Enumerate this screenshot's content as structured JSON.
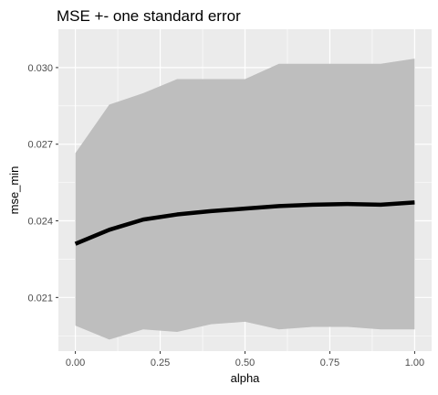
{
  "chart_data": {
    "type": "line",
    "title": "MSE +- one standard error",
    "xlabel": "alpha",
    "ylabel": "mse_min",
    "xlim": [
      -0.05,
      1.05
    ],
    "ylim": [
      0.0189,
      0.0315
    ],
    "x_ticks": [
      0.0,
      0.25,
      0.5,
      0.75,
      1.0
    ],
    "x_tick_labels": [
      "0.00",
      "0.25",
      "0.50",
      "0.75",
      "1.00"
    ],
    "y_ticks": [
      0.021,
      0.024,
      0.027,
      0.03
    ],
    "y_tick_labels": [
      "0.021",
      "0.024",
      "0.027",
      "0.030"
    ],
    "grid": true,
    "x": [
      0.0,
      0.1,
      0.2,
      0.3,
      0.4,
      0.5,
      0.6,
      0.7,
      0.8,
      0.9,
      1.0
    ],
    "series": [
      {
        "values": [
          0.0231,
          0.02365,
          0.02405,
          0.02425,
          0.02438,
          0.02448,
          0.02458,
          0.02463,
          0.02466,
          0.02463,
          0.02472
        ]
      }
    ],
    "band_upper": [
      0.02665,
      0.02855,
      0.029,
      0.02955,
      0.02955,
      0.02955,
      0.03015,
      0.03015,
      0.03015,
      0.03015,
      0.03035
    ],
    "band_lower": [
      0.0199,
      0.01935,
      0.01975,
      0.01965,
      0.01995,
      0.02005,
      0.01975,
      0.01985,
      0.01985,
      0.01975,
      0.01975
    ],
    "colors": {
      "panel": "#ebebeb",
      "grid_major": "#ffffff",
      "band": "#bebebe",
      "line": "#000000",
      "tick": "#333333"
    }
  }
}
